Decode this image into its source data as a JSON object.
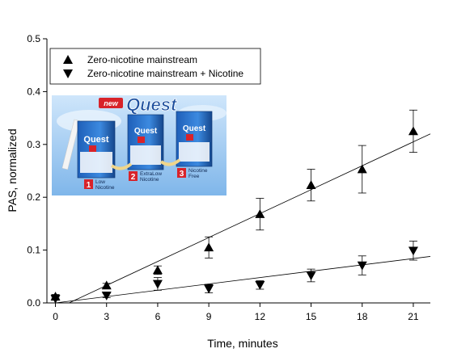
{
  "chart_data": {
    "type": "scatter",
    "xlabel": "Time, minutes",
    "ylabel": "PAS, normalized",
    "xlim": [
      -0.5,
      22
    ],
    "ylim": [
      0,
      0.5
    ],
    "x_ticks": [
      0,
      3,
      6,
      9,
      12,
      15,
      18,
      21
    ],
    "y_ticks": [
      0.0,
      0.1,
      0.2,
      0.3,
      0.4,
      0.5
    ],
    "y_tick_labels": [
      "0.0",
      "0.1",
      "0.2",
      "0.3",
      "0.4",
      "0.5"
    ],
    "grid": false,
    "legend_position": "top-left",
    "series": [
      {
        "name": "Zero-nicotine mainstream",
        "marker": "triangle-up",
        "x": [
          0,
          3,
          6,
          9,
          12,
          15,
          18,
          21
        ],
        "y": [
          0.012,
          0.033,
          0.062,
          0.105,
          0.168,
          0.223,
          0.253,
          0.325
        ],
        "error": [
          0.004,
          0.004,
          0.008,
          0.02,
          0.03,
          0.03,
          0.045,
          0.04
        ],
        "fit_line": {
          "x": [
            0.8,
            22
          ],
          "y": [
            0.0,
            0.32
          ]
        }
      },
      {
        "name": "Zero-nicotine mainstream + Nicotine",
        "marker": "triangle-down",
        "x": [
          0,
          3,
          6,
          9,
          12,
          15,
          18,
          21
        ],
        "y": [
          0.008,
          0.014,
          0.036,
          0.027,
          0.034,
          0.052,
          0.071,
          0.099
        ],
        "error": [
          0.003,
          0.004,
          0.012,
          0.008,
          0.008,
          0.012,
          0.018,
          0.018
        ],
        "fit_line": {
          "x": [
            0,
            22
          ],
          "y": [
            0.0,
            0.088
          ]
        }
      }
    ]
  },
  "inset_image": {
    "brand_badge": "new",
    "brand": "Quest",
    "products": [
      {
        "number": "1",
        "label_line1": "Low",
        "label_line2": "Nicotine"
      },
      {
        "number": "2",
        "label_line1": "ExtraLow",
        "label_line2": "Nicotine"
      },
      {
        "number": "3",
        "label_line1": "Nicotine",
        "label_line2": "Free"
      }
    ]
  },
  "colors": {
    "axis": "#000000",
    "marker": "#000000",
    "inset_sky": "#3f86d6",
    "inset_red": "#d8232a"
  }
}
